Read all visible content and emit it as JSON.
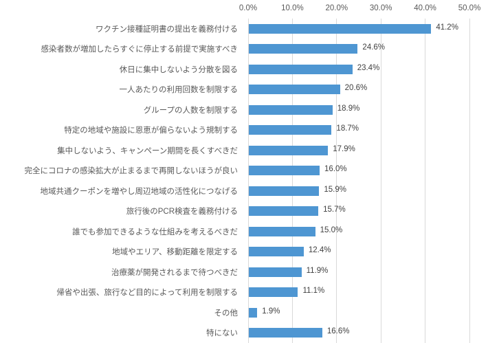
{
  "chart_data": {
    "type": "bar",
    "orientation": "horizontal",
    "title": "",
    "xlabel": "",
    "ylabel": "",
    "xlim": [
      0,
      50
    ],
    "grid": true,
    "x_ticks": [
      "0.0%",
      "10.0%",
      "20.0%",
      "30.0%",
      "40.0%",
      "50.0%"
    ],
    "categories": [
      "ワクチン接種証明書の提出を義務付ける",
      "感染者数が増加したらすぐに停止する前提で実施すべき",
      "休日に集中しないよう分散を図る",
      "一人あたりの利用回数を制限する",
      "グループの人数を制限する",
      "特定の地域や施設に恩恵が偏らないよう規制する",
      "集中しないよう、キャンペーン期間を長くすべきだ",
      "完全にコロナの感染拡大が止まるまで再開しないほうが良い",
      "地域共通クーポンを増やし周辺地域の活性化につなげる",
      "旅行後のPCR検査を義務付ける",
      "誰でも参加できるような仕組みを考えるべきだ",
      "地域やエリア、移動距離を限定する",
      "治療薬が開発されるまで待つべきだ",
      "帰省や出張、旅行など目的によって利用を制限する",
      "その他",
      "特にない"
    ],
    "values": [
      41.2,
      24.6,
      23.4,
      20.6,
      18.9,
      18.7,
      17.9,
      16.0,
      15.9,
      15.7,
      15.0,
      12.4,
      11.9,
      11.1,
      1.9,
      16.6
    ],
    "value_labels": [
      "41.2%",
      "24.6%",
      "23.4%",
      "20.6%",
      "18.9%",
      "18.7%",
      "17.9%",
      "16.0%",
      "15.9%",
      "15.7%",
      "15.0%",
      "12.4%",
      "11.9%",
      "11.1%",
      "1.9%",
      "16.6%"
    ],
    "colors": {
      "bar": "#4e96d2",
      "gridline": "#d9d9d9",
      "tick_label": "#595959",
      "category_label": "#595959",
      "value_label": "#404040",
      "background": "#ffffff"
    },
    "legend": null
  }
}
